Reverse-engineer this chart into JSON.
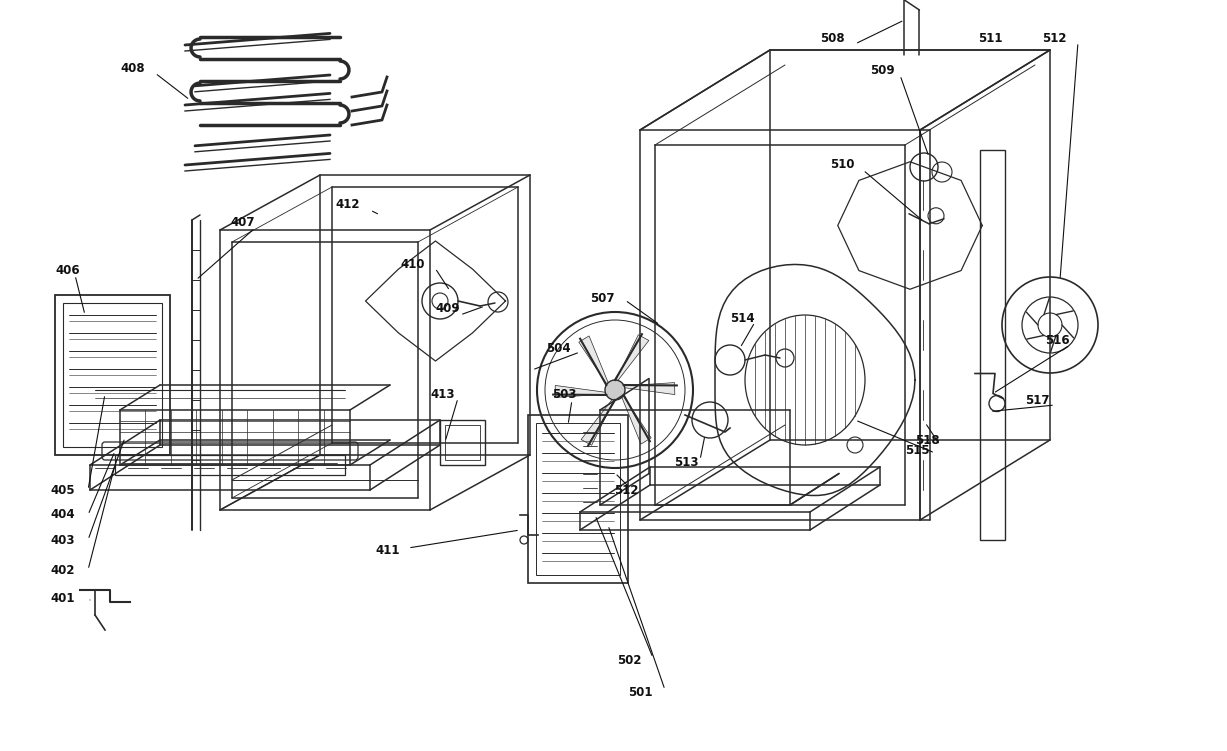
{
  "bg_color": "#ffffff",
  "line_color": "#2a2a2a",
  "label_color": "#111111",
  "lw": 1.1,
  "fontsize": 8.5,
  "fig_w": 12.27,
  "fig_h": 7.51,
  "dpi": 100
}
